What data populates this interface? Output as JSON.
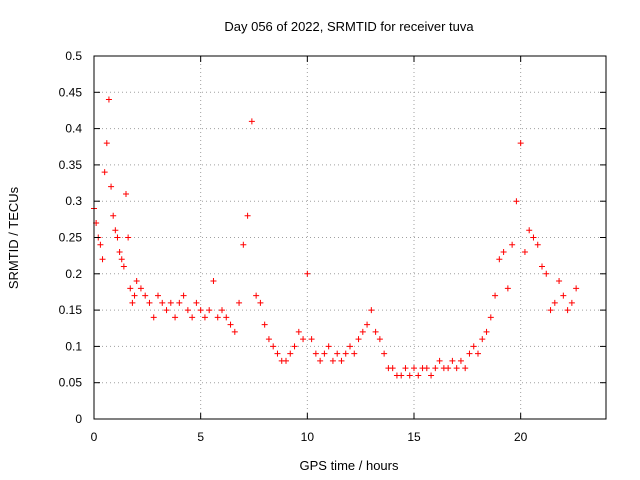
{
  "chart_data": {
    "type": "scatter",
    "title": "Day 056 of 2022, SRMTID for receiver tuva",
    "xlabel": "GPS time / hours",
    "ylabel": "SRMTID / TECUs",
    "xlim": [
      0,
      24
    ],
    "ylim": [
      0,
      0.5
    ],
    "xticks": [
      "0",
      "5",
      "10",
      "15",
      "20"
    ],
    "xtick_values": [
      0,
      5,
      10,
      15,
      20
    ],
    "yticks": [
      "0",
      "0.05",
      "0.1",
      "0.15",
      "0.2",
      "0.25",
      "0.3",
      "0.35",
      "0.4",
      "0.45",
      "0.5"
    ],
    "ytick_values": [
      0,
      0.05,
      0.1,
      0.15,
      0.2,
      0.25,
      0.3,
      0.35,
      0.4,
      0.45,
      0.5
    ],
    "grid": true,
    "marker": "plus",
    "color": "#ff0000",
    "series": [
      {
        "x": [
          0.0,
          0.1,
          0.2,
          0.3,
          0.4,
          0.5,
          0.6,
          0.7,
          0.8,
          0.9,
          1.0,
          1.1,
          1.2,
          1.3,
          1.4,
          1.5,
          1.6,
          1.7,
          1.8,
          1.9,
          2.0,
          2.2,
          2.4,
          2.6,
          2.8,
          3.0,
          3.2,
          3.4,
          3.6,
          3.8,
          4.0,
          4.2,
          4.4,
          4.6,
          4.8,
          5.0,
          5.2,
          5.4,
          5.6,
          5.8,
          6.0,
          6.2,
          6.4,
          6.6,
          6.8,
          7.0,
          7.2,
          7.4,
          7.6,
          7.8,
          8.0,
          8.2,
          8.4,
          8.6,
          8.8,
          9.0,
          9.2,
          9.4,
          9.6,
          9.8,
          10.0,
          10.2,
          10.4,
          10.6,
          10.8,
          11.0,
          11.2,
          11.4,
          11.6,
          11.8,
          12.0,
          12.2,
          12.4,
          12.6,
          12.8,
          13.0,
          13.2,
          13.4,
          13.6,
          13.8,
          14.0,
          14.2,
          14.4,
          14.6,
          14.8,
          15.0,
          15.2,
          15.4,
          15.6,
          15.8,
          16.0,
          16.2,
          16.4,
          16.6,
          16.8,
          17.0,
          17.2,
          17.4,
          17.6,
          17.8,
          18.0,
          18.2,
          18.4,
          18.6,
          18.8,
          19.0,
          19.2,
          19.4,
          19.6,
          19.8,
          20.0,
          20.2,
          20.4,
          20.6,
          20.8,
          21.0,
          21.2,
          21.4,
          21.6,
          21.8,
          22.0,
          22.2,
          22.4,
          22.6
        ],
        "y": [
          0.29,
          0.27,
          0.25,
          0.24,
          0.22,
          0.34,
          0.38,
          0.44,
          0.32,
          0.28,
          0.26,
          0.25,
          0.23,
          0.22,
          0.21,
          0.31,
          0.25,
          0.18,
          0.16,
          0.17,
          0.19,
          0.18,
          0.17,
          0.16,
          0.14,
          0.17,
          0.16,
          0.15,
          0.16,
          0.14,
          0.16,
          0.17,
          0.15,
          0.14,
          0.16,
          0.15,
          0.14,
          0.15,
          0.19,
          0.14,
          0.15,
          0.14,
          0.13,
          0.12,
          0.16,
          0.24,
          0.28,
          0.41,
          0.17,
          0.16,
          0.13,
          0.11,
          0.1,
          0.09,
          0.08,
          0.08,
          0.09,
          0.1,
          0.12,
          0.11,
          0.2,
          0.11,
          0.09,
          0.08,
          0.09,
          0.1,
          0.08,
          0.09,
          0.08,
          0.09,
          0.1,
          0.09,
          0.11,
          0.12,
          0.13,
          0.15,
          0.12,
          0.11,
          0.09,
          0.07,
          0.07,
          0.06,
          0.06,
          0.07,
          0.06,
          0.07,
          0.06,
          0.07,
          0.07,
          0.06,
          0.07,
          0.08,
          0.07,
          0.07,
          0.08,
          0.07,
          0.08,
          0.07,
          0.09,
          0.1,
          0.09,
          0.11,
          0.12,
          0.14,
          0.17,
          0.22,
          0.23,
          0.18,
          0.24,
          0.3,
          0.38,
          0.23,
          0.26,
          0.25,
          0.24,
          0.21,
          0.2,
          0.15,
          0.16,
          0.19,
          0.17,
          0.15,
          0.16,
          0.18
        ]
      }
    ]
  }
}
